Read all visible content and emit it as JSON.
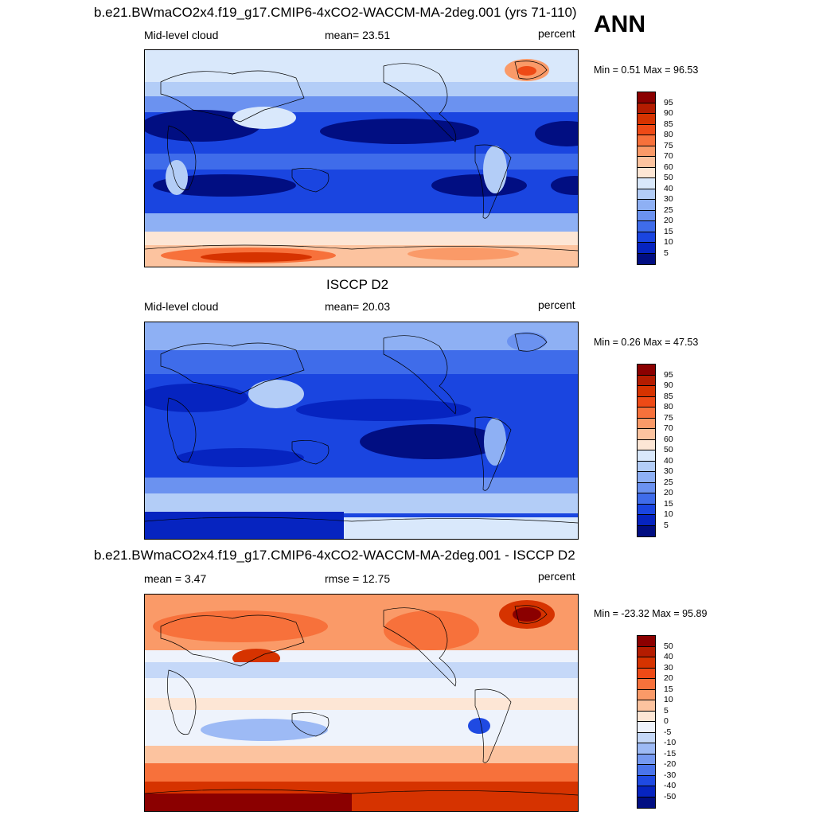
{
  "header": {
    "ann_label": "ANN"
  },
  "panels": [
    {
      "title": "b.e21.BWmaCO2x4.f19_g17.CMIP6-4xCO2-WACCM-MA-2deg.001 (yrs 71-110)",
      "left_label": "Mid-level cloud",
      "center_label": "mean=  23.51",
      "units": "percent",
      "minmax": "Min =   0.51 Max =  96.53",
      "colorbar": {
        "labels": [
          "95",
          "90",
          "85",
          "80",
          "75",
          "70",
          "60",
          "50",
          "40",
          "30",
          "25",
          "20",
          "15",
          "10",
          "5"
        ],
        "colors": [
          "#8b0000",
          "#b41c00",
          "#d63300",
          "#ee4a16",
          "#f7713b",
          "#fa9a68",
          "#fcc39f",
          "#fde6d5",
          "#d9e8fb",
          "#b3cdf7",
          "#8eb0f4",
          "#6b92f0",
          "#3f6cea",
          "#1a45e0",
          "#0624c0",
          "#010e82"
        ]
      }
    },
    {
      "title": "ISCCP D2",
      "left_label": "Mid-level cloud",
      "center_label": "mean=  20.03",
      "units": "percent",
      "minmax": "Min =   0.26 Max =  47.53",
      "colorbar": {
        "labels": [
          "95",
          "90",
          "85",
          "80",
          "75",
          "70",
          "60",
          "50",
          "40",
          "30",
          "25",
          "20",
          "15",
          "10",
          "5"
        ],
        "colors": [
          "#8b0000",
          "#b41c00",
          "#d63300",
          "#ee4a16",
          "#f7713b",
          "#fa9a68",
          "#fcc39f",
          "#fde6d5",
          "#d9e8fb",
          "#b3cdf7",
          "#8eb0f4",
          "#6b92f0",
          "#3f6cea",
          "#1a45e0",
          "#0624c0",
          "#010e82"
        ]
      }
    },
    {
      "title": "b.e21.BWmaCO2x4.f19_g17.CMIP6-4xCO2-WACCM-MA-2deg.001 - ISCCP D2",
      "left_label": "mean =   3.47",
      "center_label": "rmse =  12.75",
      "units": "percent",
      "minmax": "Min = -23.32 Max =  95.89",
      "colorbar": {
        "labels": [
          "50",
          "40",
          "30",
          "20",
          "15",
          "10",
          "5",
          "0",
          "-5",
          "-10",
          "-15",
          "-20",
          "-30",
          "-40",
          "-50"
        ],
        "colors": [
          "#8b0000",
          "#b41c00",
          "#d63300",
          "#ee4a16",
          "#f7713b",
          "#fa9a68",
          "#fcc39f",
          "#fde6d5",
          "#eef3fc",
          "#c5d8f8",
          "#9dbaf5",
          "#7599f1",
          "#4a74eb",
          "#1f4ae2",
          "#0624c0",
          "#010e82"
        ]
      }
    }
  ]
}
